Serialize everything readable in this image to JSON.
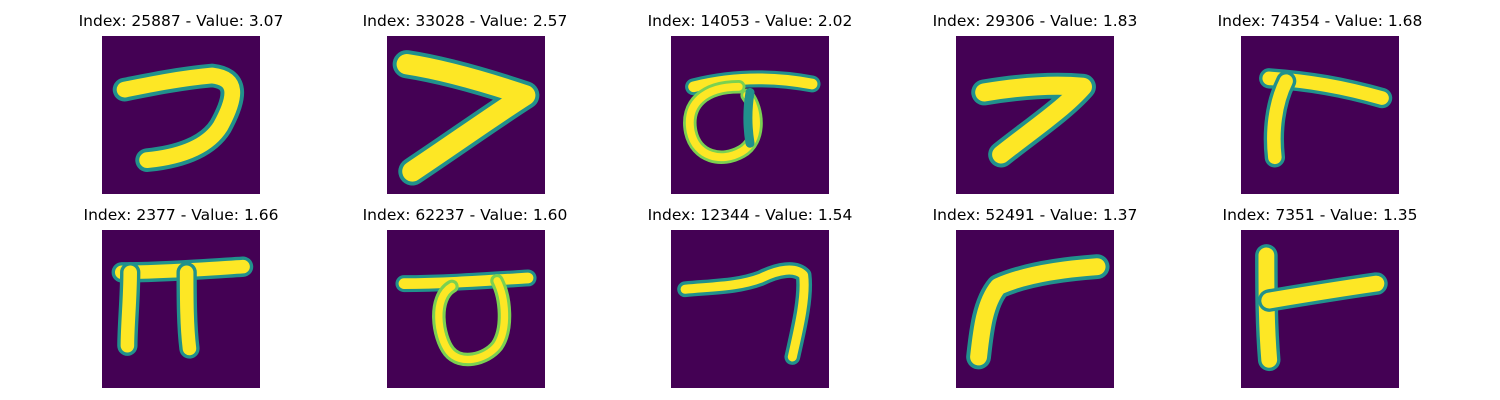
{
  "colors": {
    "background": "#440154",
    "mid_low": "#31688e",
    "mid": "#21918c",
    "mid_high": "#7ad151",
    "foreground": "#fde725"
  },
  "samples": [
    {
      "title": "Index: 25887 - Value: 3.07",
      "shape": "seven-hook"
    },
    {
      "title": "Index: 33028 - Value: 2.57",
      "shape": "wide-v"
    },
    {
      "title": "Index: 14053 - Value: 2.02",
      "shape": "loop-with-bar"
    },
    {
      "title": "Index: 29306 - Value: 1.83",
      "shape": "sideways-v"
    },
    {
      "title": "Index: 74354 - Value: 1.68",
      "shape": "seven-bracket"
    },
    {
      "title": "Index: 2377 - Value: 1.66",
      "shape": "pi-shape"
    },
    {
      "title": "Index: 62237 - Value: 1.60",
      "shape": "bar-with-loop"
    },
    {
      "title": "Index: 12344 - Value: 1.54",
      "shape": "thin-seven"
    },
    {
      "title": "Index: 52491 - Value: 1.37",
      "shape": "curved-seven"
    },
    {
      "title": "Index: 7351 - Value: 1.35",
      "shape": "t-corner"
    }
  ]
}
